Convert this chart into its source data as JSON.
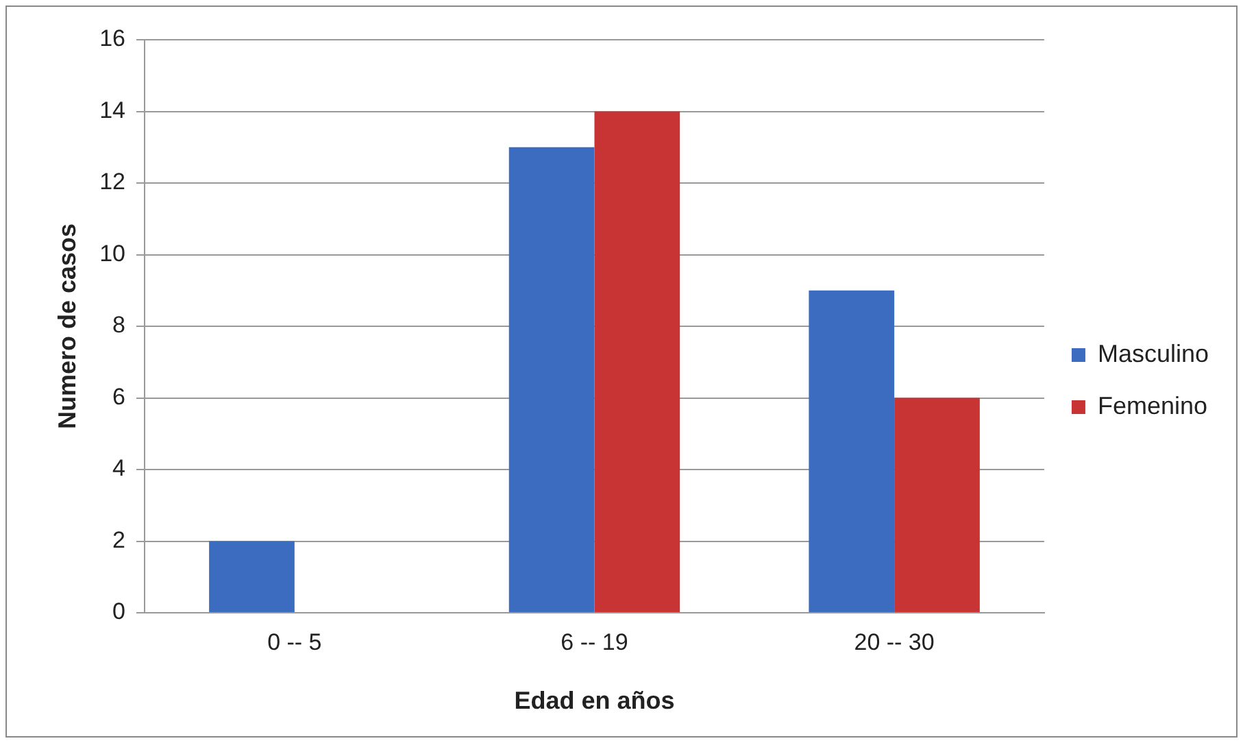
{
  "chart_data": {
    "type": "bar",
    "xlabel": "Edad en años",
    "ylabel": "Numero de casos",
    "categories": [
      "0 -- 5",
      "6 -- 19",
      "20 -- 30"
    ],
    "series": [
      {
        "name": "Masculino",
        "color": "#3b6cc0",
        "values": [
          2,
          13,
          9
        ]
      },
      {
        "name": "Femenino",
        "color": "#c83434",
        "values": [
          0,
          14,
          6
        ]
      }
    ],
    "ylim": [
      0,
      16
    ],
    "yticks": [
      0,
      2,
      4,
      6,
      8,
      10,
      12,
      14,
      16
    ],
    "grid": "y",
    "legend": "right"
  }
}
